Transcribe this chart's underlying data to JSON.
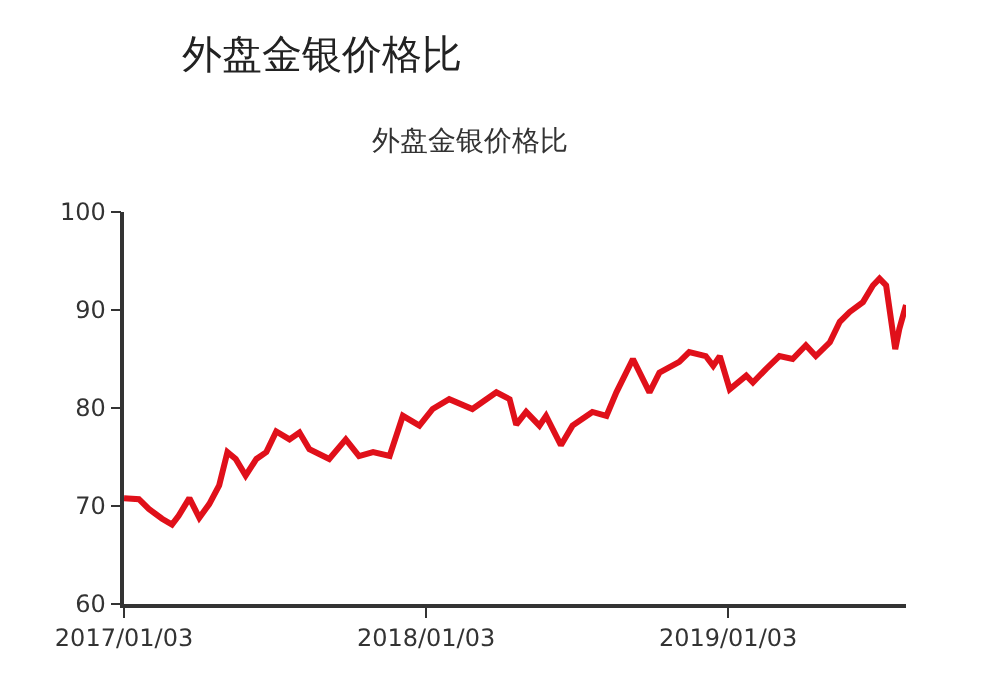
{
  "chart_data": {
    "type": "line",
    "title": "外盘金银价格比",
    "annotations": [
      "外盘金银价格比"
    ],
    "x": [
      "2017-01-03",
      "2017-01-21",
      "2017-02-02",
      "2017-02-18",
      "2017-03-02",
      "2017-03-10",
      "2017-03-23",
      "2017-04-04",
      "2017-04-16",
      "2017-04-28",
      "2017-05-08",
      "2017-05-18",
      "2017-05-30",
      "2017-06-12",
      "2017-06-24",
      "2017-07-06",
      "2017-07-22",
      "2017-08-03",
      "2017-08-15",
      "2017-09-08",
      "2017-09-28",
      "2017-10-14",
      "2017-10-31",
      "2017-11-20",
      "2017-12-06",
      "2017-12-26",
      "2018-01-11",
      "2018-01-31",
      "2018-02-28",
      "2018-03-29",
      "2018-04-14",
      "2018-04-22",
      "2018-05-04",
      "2018-05-20",
      "2018-05-28",
      "2018-06-15",
      "2018-06-29",
      "2018-07-23",
      "2018-08-09",
      "2018-08-21",
      "2018-09-10",
      "2018-09-30",
      "2018-10-12",
      "2018-11-05",
      "2018-11-17",
      "2018-12-07",
      "2018-12-16",
      "2018-12-24",
      "2019-01-05",
      "2019-01-25",
      "2019-02-02",
      "2019-02-18",
      "2019-03-06",
      "2019-03-22",
      "2019-04-07",
      "2019-04-19",
      "2019-05-06",
      "2019-05-18",
      "2019-05-30",
      "2019-06-15",
      "2019-06-27",
      "2019-07-05",
      "2019-07-13",
      "2019-07-24",
      "2019-07-29",
      "2019-08-06"
    ],
    "series": [
      {
        "color": "#e0101a",
        "values": [
          70.8,
          70.7,
          69.7,
          68.7,
          68.1,
          69.0,
          70.8,
          68.8,
          70.2,
          72.1,
          75.5,
          74.8,
          73.1,
          74.8,
          75.5,
          77.6,
          76.8,
          77.5,
          75.8,
          74.8,
          76.8,
          75.1,
          75.5,
          75.1,
          79.2,
          78.2,
          79.9,
          80.9,
          79.9,
          81.6,
          80.9,
          78.3,
          79.6,
          78.2,
          79.2,
          76.2,
          78.2,
          79.6,
          79.2,
          81.6,
          85.0,
          81.6,
          83.6,
          84.7,
          85.7,
          85.3,
          84.3,
          85.3,
          81.9,
          83.3,
          82.6,
          84.0,
          85.3,
          85.0,
          86.4,
          85.3,
          86.7,
          88.8,
          89.8,
          90.8,
          92.5,
          93.2,
          92.5,
          86.0,
          88.1,
          90.5
        ]
      }
    ],
    "xlim": [
      "2017-01-03",
      "2019-08-06"
    ],
    "xticks": [
      {
        "value": "2017-01-03",
        "label": "2017/01/03"
      },
      {
        "value": "2018-01-03",
        "label": "2018/01/03"
      },
      {
        "value": "2019-01-03",
        "label": "2019/01/03"
      }
    ],
    "ylim": [
      60,
      100
    ],
    "yticks": [
      60,
      70,
      80,
      90,
      100
    ],
    "marker": "none",
    "line_style": "solid"
  }
}
